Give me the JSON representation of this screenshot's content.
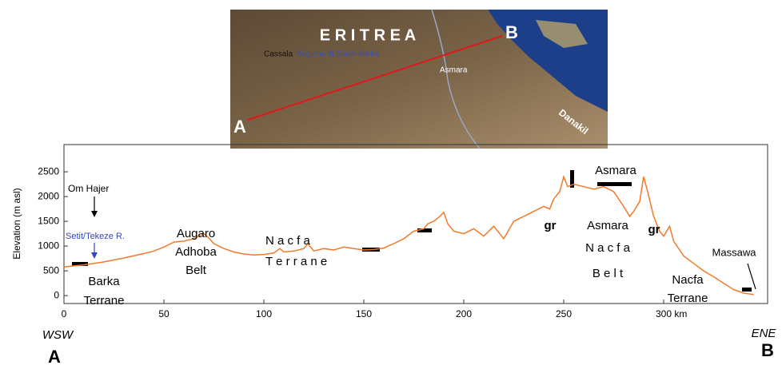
{
  "map": {
    "country": "E R I T R E A",
    "places": [
      "Cassala",
      "Regione di Gash-Barka",
      "Asmara",
      "Danakil"
    ],
    "start": "A",
    "end": "B"
  },
  "chart_data": {
    "type": "line",
    "ylabel": "Elevation (m asl)",
    "x": [
      0,
      5,
      10,
      20,
      30,
      40,
      45,
      50,
      55,
      60,
      65,
      70,
      72,
      75,
      80,
      85,
      90,
      95,
      100,
      105,
      108,
      110,
      115,
      120,
      122,
      125,
      130,
      135,
      140,
      145,
      150,
      155,
      160,
      165,
      170,
      175,
      180,
      182,
      185,
      188,
      190,
      192,
      195,
      200,
      205,
      210,
      215,
      220,
      225,
      230,
      235,
      240,
      243,
      245,
      248,
      250,
      252,
      255,
      260,
      265,
      270,
      275,
      280,
      283,
      285,
      288,
      290,
      292,
      295,
      298,
      300,
      303,
      305,
      310,
      315,
      320,
      325,
      330,
      335,
      340,
      345
    ],
    "values": [
      580,
      600,
      620,
      680,
      760,
      850,
      900,
      980,
      1080,
      1100,
      1150,
      1250,
      1180,
      1050,
      950,
      880,
      840,
      820,
      830,
      860,
      950,
      880,
      900,
      950,
      1050,
      900,
      950,
      920,
      980,
      950,
      920,
      930,
      960,
      1050,
      1150,
      1300,
      1350,
      1450,
      1500,
      1600,
      1680,
      1450,
      1300,
      1250,
      1350,
      1200,
      1400,
      1150,
      1500,
      1600,
      1700,
      1800,
      1750,
      1950,
      2100,
      2400,
      2200,
      2250,
      2200,
      2150,
      2200,
      2100,
      1800,
      1600,
      1700,
      1900,
      2400,
      2100,
      1600,
      1300,
      1200,
      1400,
      1100,
      800,
      650,
      500,
      380,
      250,
      120,
      50,
      20
    ],
    "color": "#f07a2a",
    "xlim": [
      0,
      352
    ],
    "ylim": [
      -160,
      3050
    ],
    "xticks": [
      0,
      50,
      100,
      150,
      200,
      250,
      {
        "value": 300,
        "label": "300 km"
      }
    ],
    "yticks": [
      0,
      500,
      1000,
      1500,
      2000,
      2500
    ],
    "annotations": [
      "Om Hajer",
      "Setit/Tekeze R.",
      "Barka",
      "Terrane",
      "Augaro",
      "Adhoba",
      "Belt",
      "N a c f a",
      "T e r r a n e",
      "gr",
      "Asmara",
      "Asmara",
      "N a c f a",
      "B e l t",
      "gr",
      "Nacfa",
      "Terrane",
      "Massawa",
      "WSW",
      "ENE",
      "A",
      "B"
    ]
  }
}
